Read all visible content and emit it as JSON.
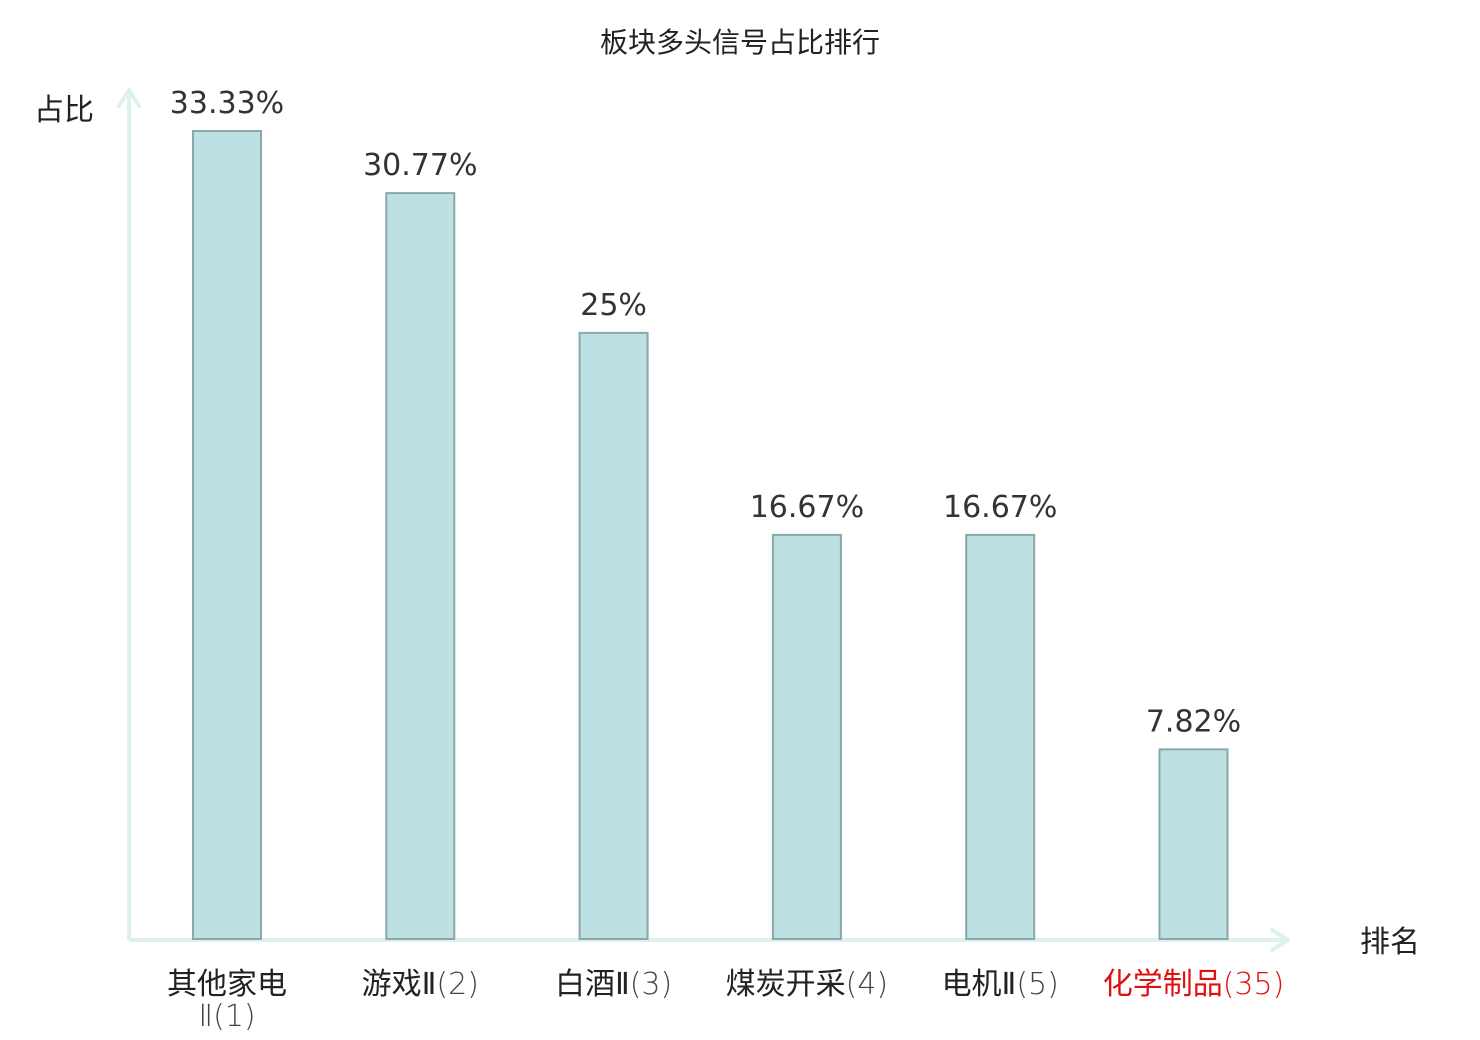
{
  "colors": {
    "bar_fill": "#bde0e3",
    "bar_stroke": "#8aa8ab",
    "axis": "#dff1ef",
    "highlight": "#e01010"
  },
  "chart_data": {
    "type": "bar",
    "title": "板块多头信号占比排行",
    "xlabel": "排名",
    "ylabel": "占比",
    "ylim": [
      0,
      36
    ],
    "grid": false,
    "categories": [
      {
        "name": "其他家电",
        "name2": "Ⅱ",
        "rank": "(1)",
        "value": 33.33,
        "label": "33.33%",
        "highlight": false
      },
      {
        "name": "游戏Ⅱ",
        "rank": "(2)",
        "value": 30.77,
        "label": "30.77%",
        "highlight": false
      },
      {
        "name": "白酒Ⅱ",
        "rank": "(3)",
        "value": 25,
        "label": "25%",
        "highlight": false
      },
      {
        "name": "煤炭开采",
        "rank": "(4)",
        "value": 16.67,
        "label": "16.67%",
        "highlight": false
      },
      {
        "name": "电机Ⅱ",
        "rank": "(5)",
        "value": 16.67,
        "label": "16.67%",
        "highlight": false
      },
      {
        "name": "化学制品",
        "rank": "(35)",
        "value": 7.82,
        "label": "7.82%",
        "highlight": true
      }
    ]
  }
}
